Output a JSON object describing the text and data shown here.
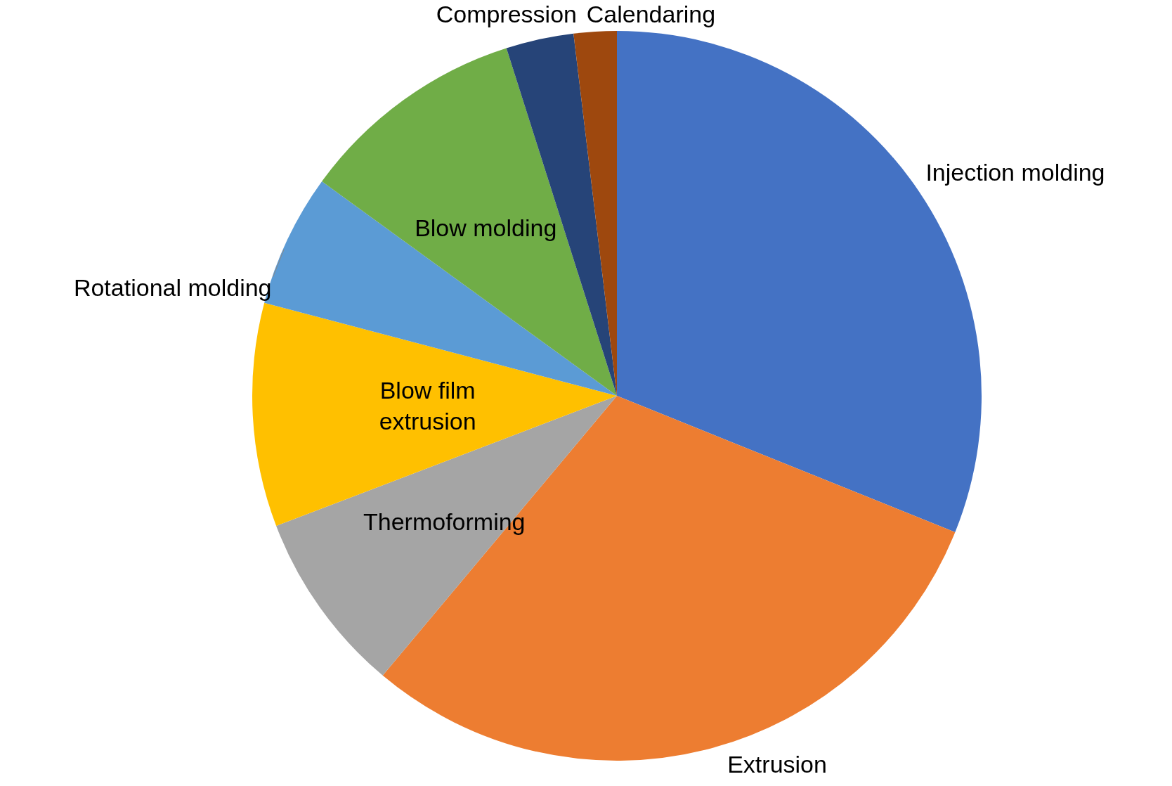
{
  "chart_data": {
    "type": "pie",
    "categories": [
      "Injection molding",
      "Extrusion",
      "Thermoforming",
      "Blow film extrusion",
      "Rotational molding",
      "Blow molding",
      "Compression",
      "Calendaring"
    ],
    "values": [
      31.1,
      30,
      8.1,
      9.9,
      5.9,
      10.1,
      3,
      1.9
    ],
    "colors": [
      "#4472c4",
      "#ed7d31",
      "#a5a5a5",
      "#ffc000",
      "#5b9bd5",
      "#70ad47",
      "#264478",
      "#9e480e"
    ],
    "legend": false
  }
}
